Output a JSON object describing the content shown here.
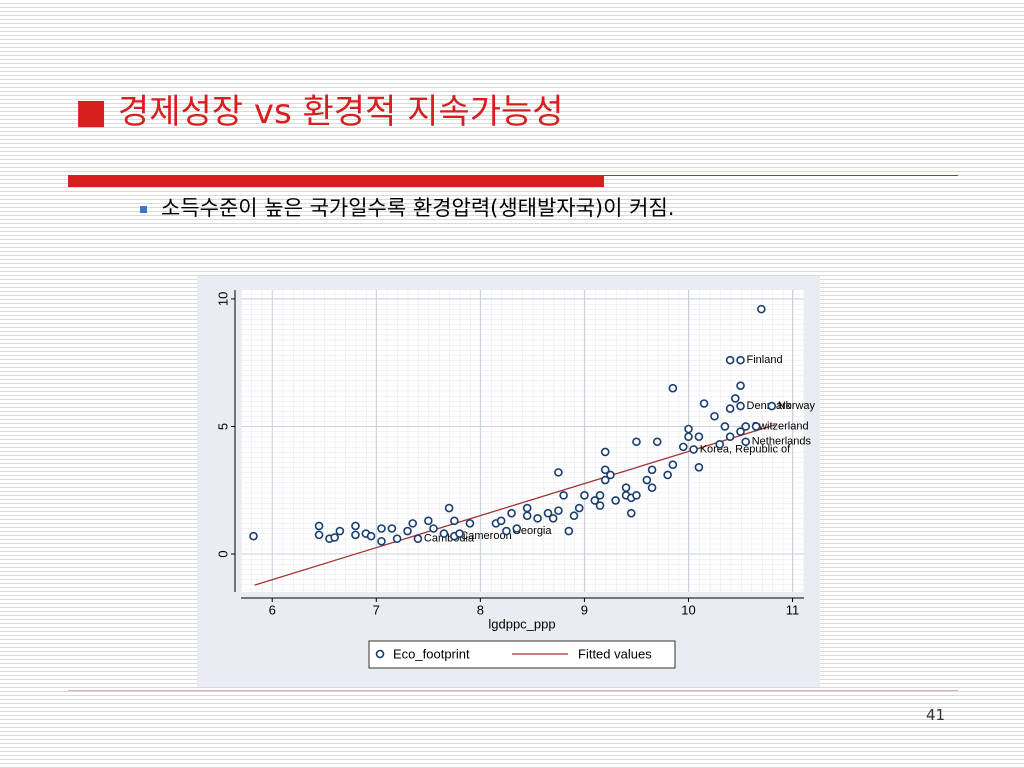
{
  "slide": {
    "title": "■ 경제성장 vs 환경적 지속가능성",
    "bullet": "소득수준이 높은 국가일수록 환경압력(생태발자국)이 커짐.",
    "page_number": "41"
  },
  "chart_data": {
    "type": "scatter",
    "x_label": "lgdppc_ppp",
    "xlim": [
      5.7,
      11.11
    ],
    "ylim": [
      -1.49,
      10.35
    ],
    "xticks": [
      6,
      7,
      8,
      9,
      10,
      11
    ],
    "yticks": [
      0,
      5,
      10
    ],
    "grid": true,
    "series": [
      {
        "name": "Eco_footprint",
        "color": "#1a3d6e",
        "x": [
          5.82,
          6.45,
          6.45,
          6.55,
          6.6,
          6.65,
          6.8,
          6.8,
          6.9,
          6.95,
          7.05,
          7.05,
          7.15,
          7.2,
          7.3,
          7.35,
          7.4,
          7.5,
          7.55,
          7.65,
          7.7,
          7.75,
          7.75,
          7.8,
          7.9,
          8.15,
          8.2,
          8.25,
          8.3,
          8.35,
          8.45,
          8.45,
          8.55,
          8.65,
          8.7,
          8.75,
          8.75,
          8.8,
          8.85,
          8.9,
          8.95,
          9.0,
          9.1,
          9.15,
          9.15,
          9.2,
          9.2,
          9.2,
          9.25,
          9.3,
          9.4,
          9.4,
          9.45,
          9.45,
          9.5,
          9.5,
          9.6,
          9.65,
          9.65,
          9.7,
          9.8,
          9.85,
          9.85,
          9.95,
          10.0,
          10.0,
          10.05,
          10.1,
          10.1,
          10.15,
          10.25,
          10.3,
          10.35,
          10.4,
          10.4,
          10.4,
          10.45,
          10.5,
          10.5,
          10.5,
          10.5,
          10.55,
          10.55,
          10.65,
          10.7,
          10.8
        ],
        "values": [
          0.7,
          1.1,
          0.75,
          0.6,
          0.65,
          0.9,
          1.1,
          0.75,
          0.8,
          0.7,
          1.0,
          0.5,
          1.0,
          0.6,
          0.9,
          1.2,
          0.6,
          1.3,
          1.0,
          0.8,
          1.8,
          1.3,
          0.7,
          0.8,
          1.2,
          1.2,
          1.3,
          0.9,
          1.6,
          1.0,
          1.8,
          1.5,
          1.4,
          1.6,
          1.4,
          3.2,
          1.7,
          2.3,
          0.9,
          1.5,
          1.8,
          2.3,
          2.1,
          2.3,
          1.9,
          2.9,
          3.3,
          4.0,
          3.1,
          2.1,
          2.3,
          2.6,
          1.6,
          2.2,
          4.4,
          2.3,
          2.9,
          3.3,
          2.6,
          4.4,
          3.1,
          3.5,
          6.5,
          4.2,
          4.9,
          4.6,
          4.1,
          3.4,
          4.6,
          5.9,
          5.4,
          4.3,
          5.0,
          5.7,
          4.6,
          7.6,
          6.1,
          5.8,
          4.8,
          6.6,
          7.6,
          5.0,
          4.4,
          5.0,
          9.6,
          5.8
        ],
        "point_labels": [
          null,
          null,
          null,
          null,
          null,
          null,
          null,
          null,
          null,
          null,
          null,
          null,
          null,
          null,
          null,
          null,
          "Cambodia",
          null,
          null,
          null,
          null,
          null,
          "Cameroon",
          null,
          null,
          null,
          null,
          "Georgia",
          null,
          null,
          null,
          null,
          null,
          null,
          null,
          null,
          null,
          null,
          null,
          null,
          null,
          null,
          null,
          null,
          null,
          null,
          null,
          null,
          null,
          null,
          null,
          null,
          null,
          null,
          null,
          null,
          null,
          null,
          null,
          null,
          null,
          null,
          null,
          null,
          null,
          null,
          "Korea, Republic of",
          null,
          null,
          null,
          null,
          null,
          null,
          null,
          null,
          null,
          null,
          "Denmark",
          null,
          null,
          "Finland",
          "Switzerland",
          "Netherlands",
          null,
          null,
          "Norway"
        ]
      },
      {
        "name": "Fitted values",
        "color": "#a33333",
        "x": [
          5.83,
          10.83
        ],
        "values": [
          -1.22,
          5.06
        ]
      }
    ]
  }
}
